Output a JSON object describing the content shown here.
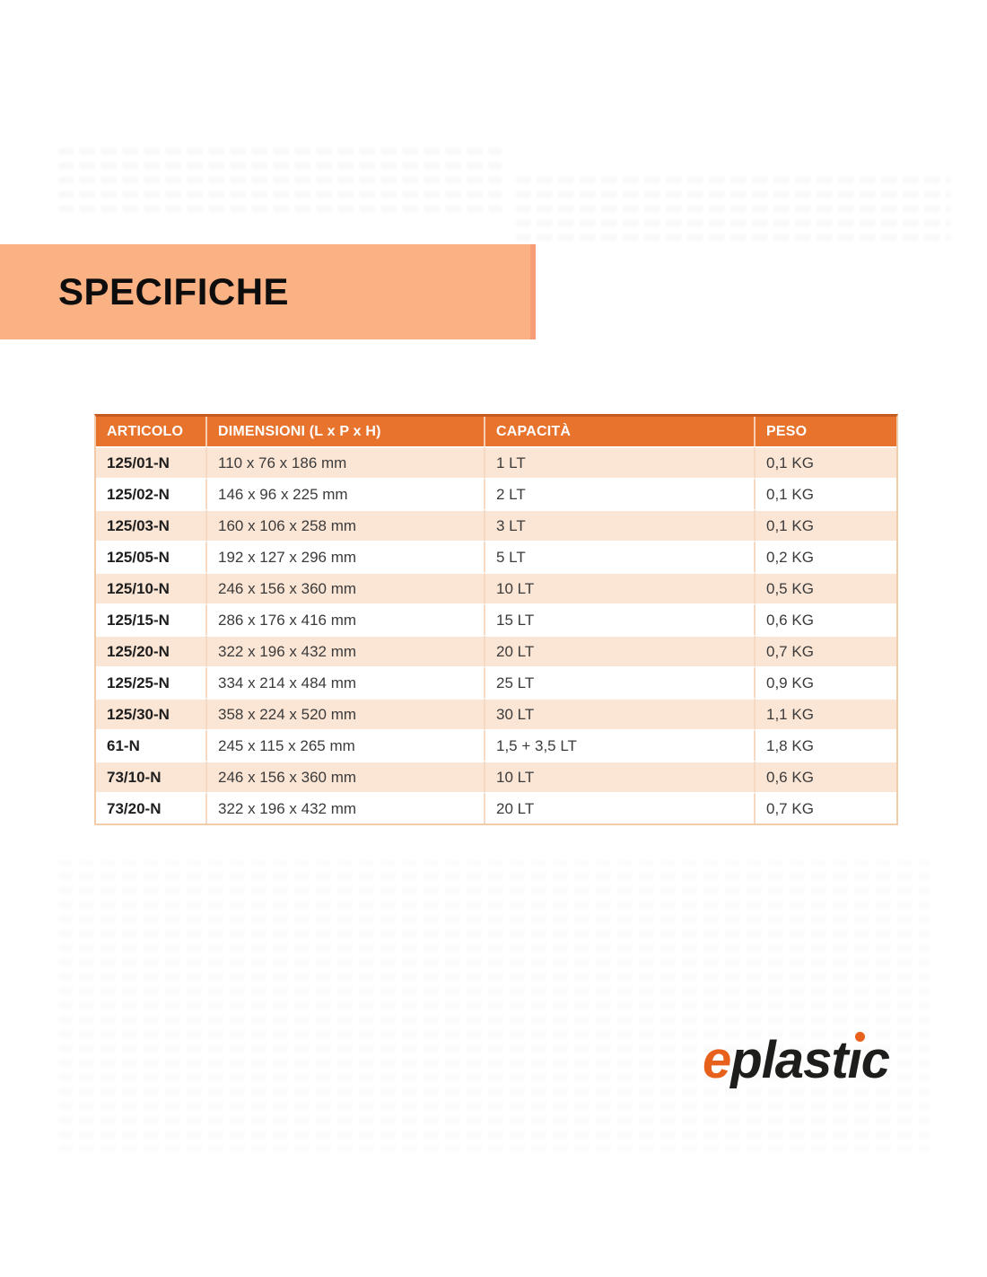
{
  "title_banner": {
    "label": "SPECIFICHE",
    "bg": "#FAB183"
  },
  "table": {
    "columns": [
      {
        "key": "articolo",
        "label": "ARTICOLO"
      },
      {
        "key": "dimensioni",
        "label": "DIMENSIONI (L x P x H)"
      },
      {
        "key": "capacita",
        "label": "CAPACITÀ"
      },
      {
        "key": "peso",
        "label": "PESO"
      }
    ],
    "rows": [
      [
        "125/01-N",
        "110 x 76 x 186 mm",
        "1 LT",
        "0,1 KG"
      ],
      [
        "125/02-N",
        "146 x 96 x 225 mm",
        "2 LT",
        "0,1 KG"
      ],
      [
        "125/03-N",
        "160 x 106 x 258 mm",
        "3 LT",
        "0,1 KG"
      ],
      [
        "125/05-N",
        "192 x 127 x 296 mm",
        "5 LT",
        "0,2 KG"
      ],
      [
        "125/10-N",
        "246 x 156 x 360 mm",
        "10 LT",
        "0,5 KG"
      ],
      [
        "125/15-N",
        "286 x 176 x 416 mm",
        "15 LT",
        "0,6 KG"
      ],
      [
        "125/20-N",
        "322 x 196 x 432 mm",
        "20 LT",
        "0,7 KG"
      ],
      [
        "125/25-N",
        "334 x 214 x 484 mm",
        "25 LT",
        "0,9 KG"
      ],
      [
        "125/30-N",
        "358 x 224 x 520 mm",
        "30 LT",
        "1,1 KG"
      ],
      [
        "61-N",
        "245 x 115 x 265 mm",
        "1,5 + 3,5 LT",
        "1,8 KG"
      ],
      [
        "73/10-N",
        "246 x 156 x 360 mm",
        "10 LT",
        "0,6 KG"
      ],
      [
        "73/20-N",
        "322 x 196 x 432 mm",
        "20 LT",
        "0,7 KG"
      ]
    ]
  },
  "logo": {
    "brand": "eplastic",
    "e_glyph": "e",
    "text_before_i": "plast",
    "dotless_i": "ı",
    "text_after_i": "c"
  },
  "colors": {
    "header_bg": "#E7732D",
    "row_alt_bg": "#FBE5D5",
    "banner_bg": "#FAB183",
    "logo_orange": "#E8611C",
    "logo_black": "#1D1D1B"
  }
}
